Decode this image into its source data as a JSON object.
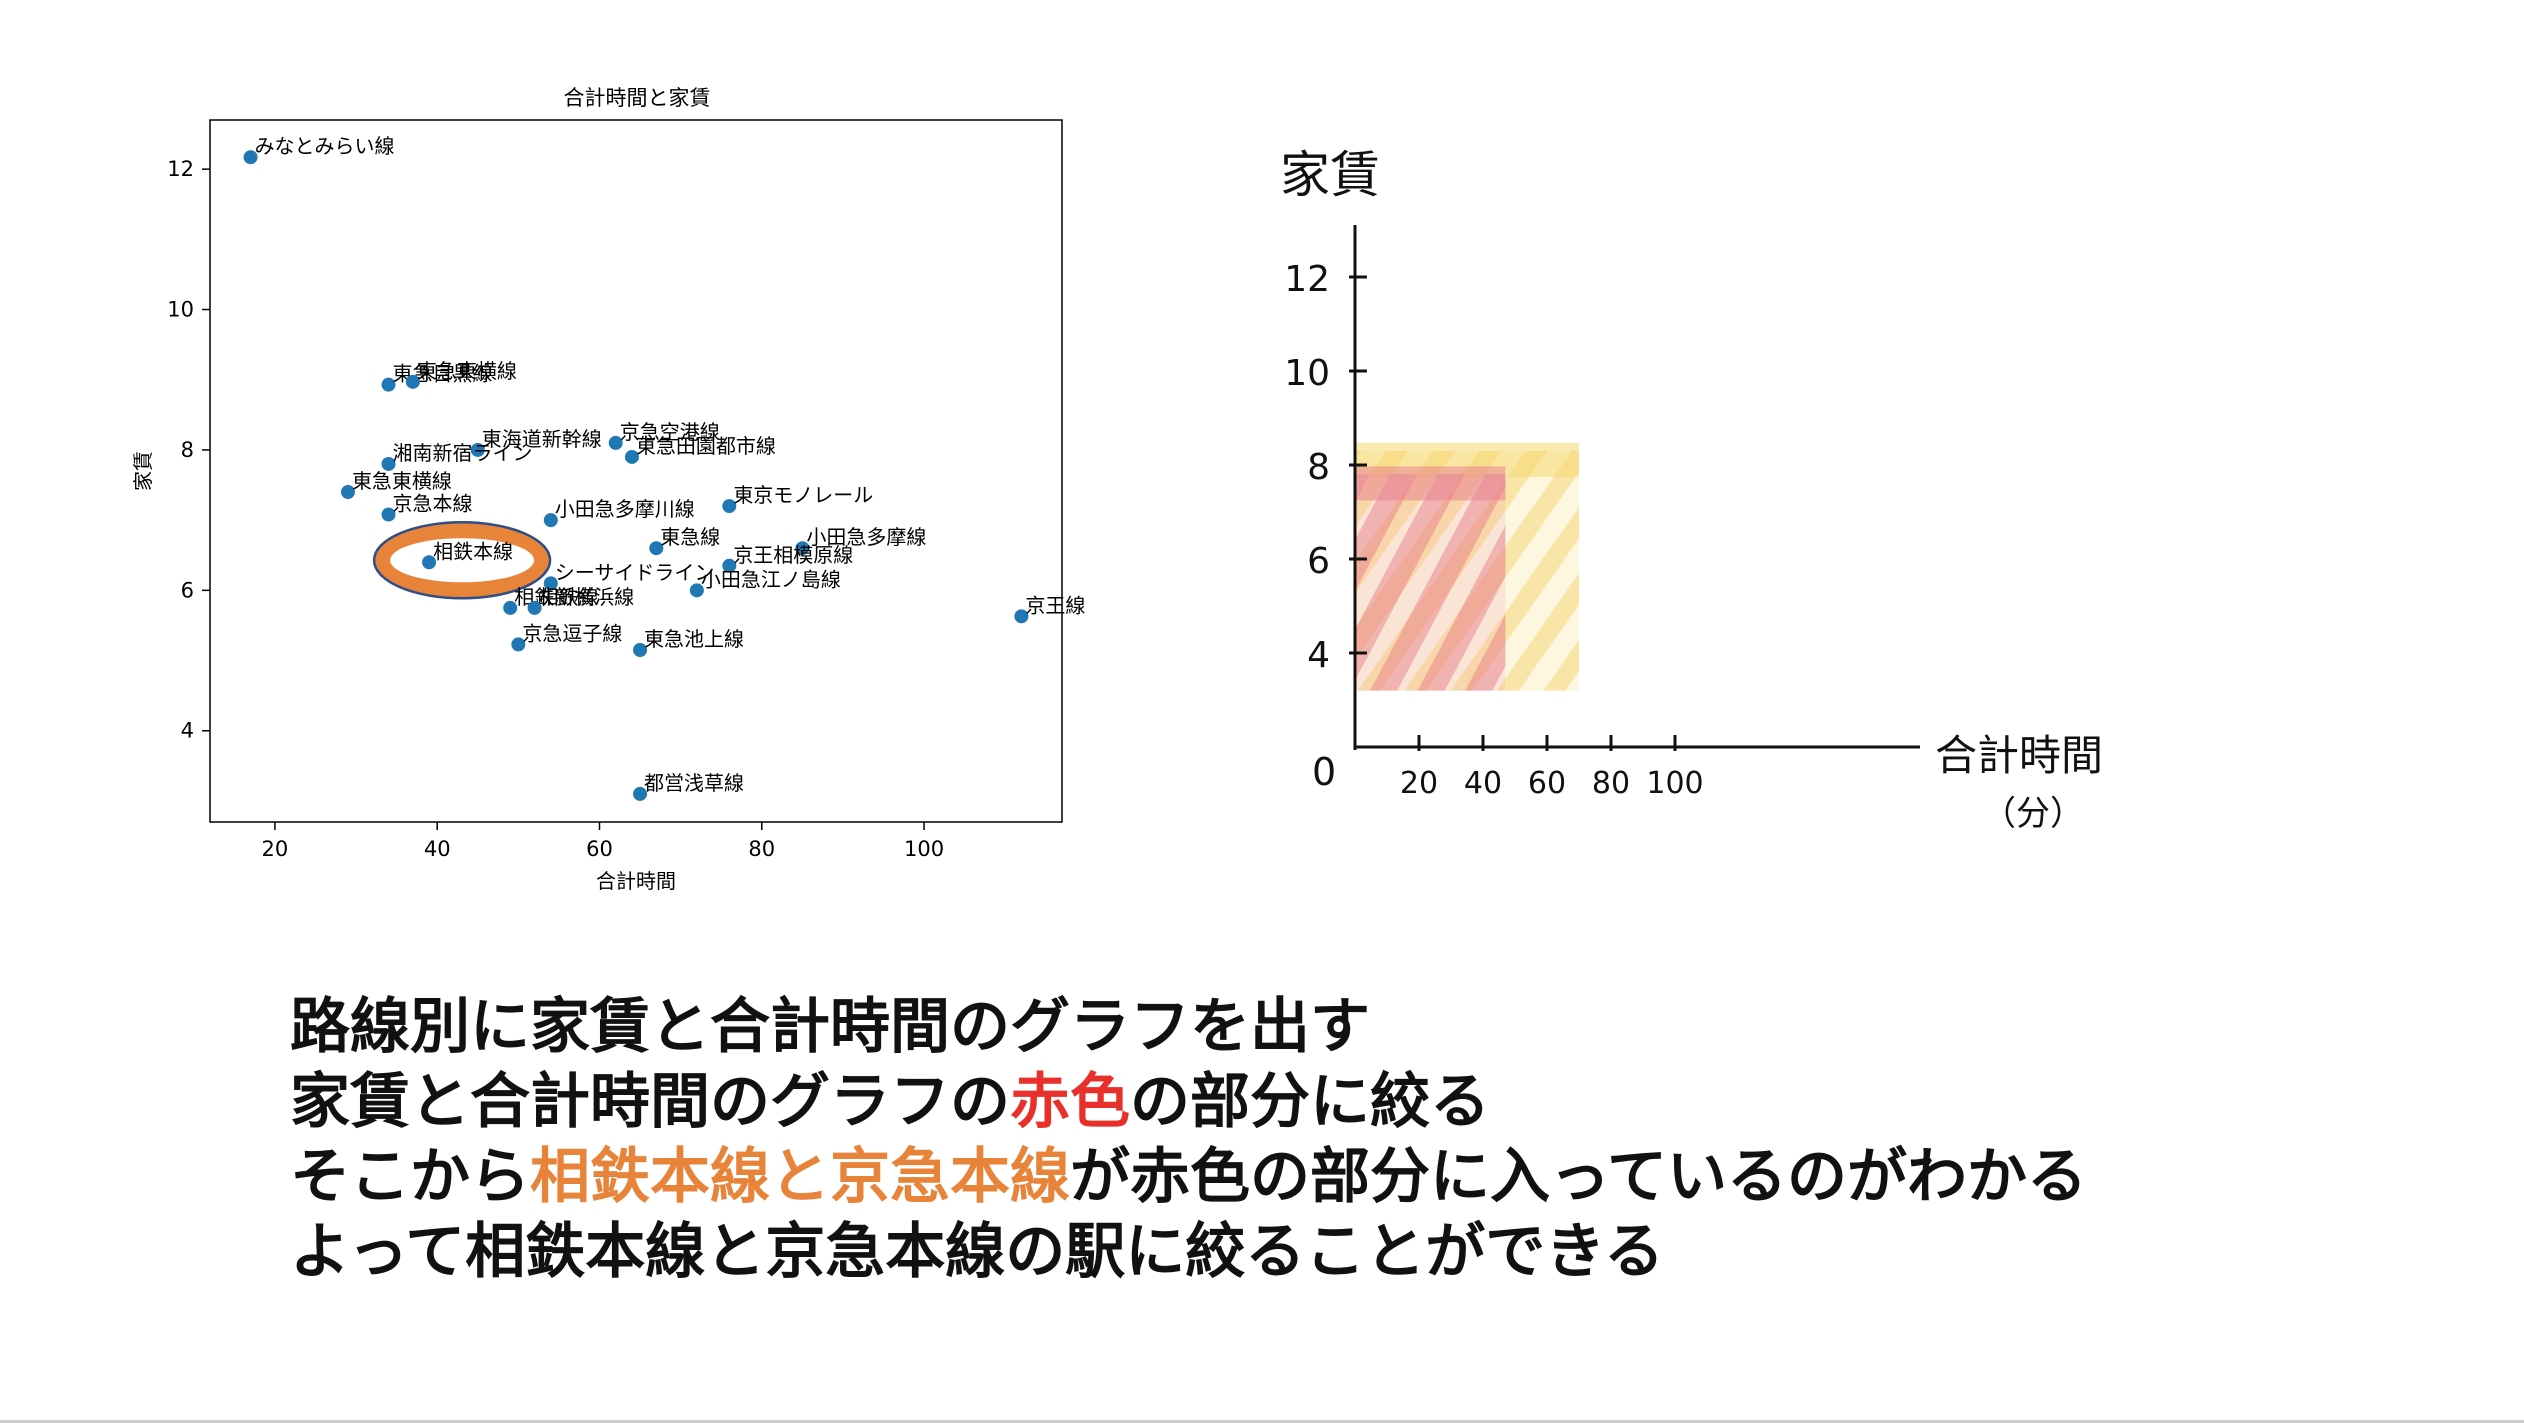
{
  "chart_data": [
    {
      "type": "scatter",
      "title": "合計時間と家賃",
      "xlabel": "合計時間",
      "ylabel": "家賃",
      "xlim": [
        12,
        117
      ],
      "ylim": [
        2.7,
        12.7
      ],
      "xticks": [
        "20",
        "40",
        "60",
        "80",
        "100"
      ],
      "yticks": [
        "4",
        "6",
        "8",
        "10",
        "12"
      ],
      "point_color": "#1f77b4",
      "highlight": {
        "label": "相鉄本線",
        "color": "#e8843a"
      },
      "points": [
        {
          "x": 17,
          "y": 12.17,
          "label": "みなとみらい線"
        },
        {
          "x": 34,
          "y": 8.93,
          "label": "東急目黒線"
        },
        {
          "x": 37,
          "y": 8.97,
          "label": "東急東横線"
        },
        {
          "x": 45,
          "y": 8.0,
          "label": "東海道新幹線"
        },
        {
          "x": 62,
          "y": 8.1,
          "label": "京急空港線"
        },
        {
          "x": 64,
          "y": 7.9,
          "label": "東急田園都市線"
        },
        {
          "x": 34,
          "y": 7.8,
          "label": "湘南新宿ライン"
        },
        {
          "x": 29,
          "y": 7.4,
          "label": "東急東横線"
        },
        {
          "x": 76,
          "y": 7.2,
          "label": "東京モノレール"
        },
        {
          "x": 34,
          "y": 7.08,
          "label": "京急本線"
        },
        {
          "x": 54,
          "y": 7.0,
          "label": "小田急多摩川線"
        },
        {
          "x": 67,
          "y": 6.6,
          "label": "東急線"
        },
        {
          "x": 85,
          "y": 6.6,
          "label": "小田急多摩線"
        },
        {
          "x": 76,
          "y": 6.35,
          "label": "京王相模原線"
        },
        {
          "x": 39,
          "y": 6.4,
          "label": "相鉄本線"
        },
        {
          "x": 54,
          "y": 6.1,
          "label": "シーサイドライン"
        },
        {
          "x": 72,
          "y": 6.0,
          "label": "小田急江ノ島線"
        },
        {
          "x": 49,
          "y": 5.75,
          "label": "相鉄新横浜線"
        },
        {
          "x": 52,
          "y": 5.75,
          "label": "相鉄線"
        },
        {
          "x": 112,
          "y": 5.63,
          "label": "京王線"
        },
        {
          "x": 50,
          "y": 5.23,
          "label": "京急逗子線"
        },
        {
          "x": 65,
          "y": 5.15,
          "label": "東急池上線"
        },
        {
          "x": 65,
          "y": 3.1,
          "label": "都営浅草線"
        }
      ]
    },
    {
      "type": "area",
      "xlabel": "合計時間",
      "xlabel_sub": "（分）",
      "ylabel": "家賃",
      "origin_label": "0",
      "xticks": [
        "20",
        "40",
        "60",
        "80",
        "100"
      ],
      "yticks": [
        "4",
        "6",
        "8",
        "10",
        "12"
      ],
      "regions": [
        {
          "name": "red",
          "color": "#e8848e",
          "x_range": [
            0,
            47
          ],
          "y_range": [
            3.2,
            7.8
          ]
        },
        {
          "name": "yellow",
          "color": "#f6d870",
          "x_range": [
            0,
            70
          ],
          "y_range": [
            3.2,
            8.3
          ]
        }
      ]
    }
  ],
  "caption": {
    "line1": "路線別に家賃と合計時間のグラフを出す",
    "line2_pre": "家賃と合計時間のグラフの",
    "line2_hl": "赤色",
    "line2_post": "の部分に絞る",
    "line3_pre": "そこから",
    "line3_hl": "相鉄本線と京急本線",
    "line3_post": "が赤色の部分に入っているのがわかる",
    "line4": "よって相鉄本線と京急本線の駅に絞ることができる"
  }
}
